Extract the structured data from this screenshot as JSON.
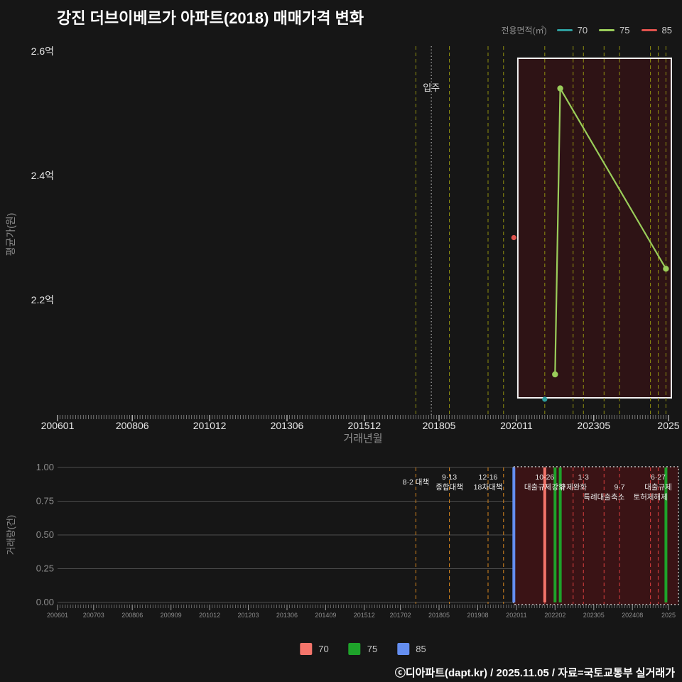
{
  "title": "강진 더브이베르가 아파트(2018) 매매가격 변화",
  "footer": "ⓒ디아파트(dapt.kr) / 2025.11.05 / 자료=국토교통부 실거래가",
  "area_legend": {
    "title": "전용면적(㎡)",
    "items": [
      {
        "label": "70",
        "color": "#2e9e9e"
      },
      {
        "label": "75",
        "color": "#9acd5a"
      },
      {
        "label": "85",
        "color": "#e0524d"
      }
    ]
  },
  "volume_legend": {
    "items": [
      {
        "label": "70",
        "color": "#f4756b"
      },
      {
        "label": "75",
        "color": "#1ea32a"
      },
      {
        "label": "85",
        "color": "#648ef0"
      }
    ]
  },
  "colors": {
    "background": "#161616",
    "title_text": "#ffffff",
    "policy_top": "#8f8f10",
    "policy_pre": "#c87d1e",
    "policy_post": "#cc3b3b",
    "move_in_line": "#aaaaaa",
    "zoom_box_fill": "#2e1315",
    "zoom_box_border": "#f2f2f2",
    "selection_fill": "#3a1315",
    "selection_border": "#c8c8c8",
    "gridline": "#4d4d4d",
    "axis_text": "#e8e8e8",
    "muted_text": "#8d8d8d",
    "annotation_text": "#e9e9e9"
  },
  "chart_data": [
    {
      "type": "line",
      "title": "매매가격 변화 (평균가)",
      "xlabel": "거래년월",
      "ylabel": "평균가(원)",
      "xlim": [
        "200601",
        "202510"
      ],
      "ylim_eok": [
        2.0,
        2.62
      ],
      "x_ticks": [
        {
          "ym": "200601",
          "label": "200601"
        },
        {
          "ym": "200806",
          "label": "200806"
        },
        {
          "ym": "201012",
          "label": "201012"
        },
        {
          "ym": "201306",
          "label": "201306"
        },
        {
          "ym": "201512",
          "label": "201512"
        },
        {
          "ym": "201805",
          "label": "201805"
        },
        {
          "ym": "202011",
          "label": "202011"
        },
        {
          "ym": "202305",
          "label": "202305"
        },
        {
          "ym": "202510",
          "label": "2025"
        }
      ],
      "y_ticks": [
        {
          "value": 2.2,
          "label": "2.2억"
        },
        {
          "value": 2.4,
          "label": "2.4억"
        },
        {
          "value": 2.6,
          "label": "2.6억"
        }
      ],
      "series": [
        {
          "name": "70",
          "color": "#2e9e9e",
          "unit": "억",
          "points": [
            [
              "202110",
              2.04
            ]
          ]
        },
        {
          "name": "75",
          "color": "#9acd5a",
          "unit": "억",
          "points": [
            [
              "202202",
              2.08
            ],
            [
              "202204",
              2.54
            ],
            [
              "202509",
              2.25
            ]
          ]
        },
        {
          "name": "85",
          "color": "#e0524d",
          "unit": "억",
          "points": [
            [
              "202010",
              2.3
            ]
          ]
        }
      ],
      "move_in": {
        "label": "입주",
        "ym": "201802"
      },
      "policy_lines": [
        "201708",
        "201809",
        "201912",
        "202006",
        "202110",
        "202209",
        "202301",
        "202309",
        "202403",
        "202503",
        "202506",
        "202509"
      ],
      "zoom_box": {
        "from": "202011",
        "to": "202510"
      }
    },
    {
      "type": "bar",
      "ylabel": "거래량(건)",
      "ylim": [
        0,
        1
      ],
      "x_ticks": [
        {
          "ym": "200601",
          "label": "200601"
        },
        {
          "ym": "200703",
          "label": "200703"
        },
        {
          "ym": "200806",
          "label": "200806"
        },
        {
          "ym": "200909",
          "label": "200909"
        },
        {
          "ym": "201012",
          "label": "201012"
        },
        {
          "ym": "201203",
          "label": "201203"
        },
        {
          "ym": "201306",
          "label": "201306"
        },
        {
          "ym": "201409",
          "label": "201409"
        },
        {
          "ym": "201512",
          "label": "201512"
        },
        {
          "ym": "201702",
          "label": "201702"
        },
        {
          "ym": "201805",
          "label": "201805"
        },
        {
          "ym": "201908",
          "label": "201908"
        },
        {
          "ym": "202011",
          "label": "202011"
        },
        {
          "ym": "202202",
          "label": "202202"
        },
        {
          "ym": "202305",
          "label": "202305"
        },
        {
          "ym": "202408",
          "label": "202408"
        },
        {
          "ym": "202510",
          "label": "2025"
        }
      ],
      "y_ticks": [
        {
          "value": 0,
          "label": "0.00"
        },
        {
          "value": 0.25,
          "label": "0.25"
        },
        {
          "value": 0.5,
          "label": "0.50"
        },
        {
          "value": 0.75,
          "label": "0.75"
        },
        {
          "value": 1,
          "label": "1.00"
        }
      ],
      "bars": [
        {
          "ym": "202010",
          "name": "85",
          "value": 1,
          "color": "#648ef0"
        },
        {
          "ym": "202110",
          "name": "70",
          "value": 1,
          "color": "#f4756b"
        },
        {
          "ym": "202202",
          "name": "75",
          "value": 1,
          "color": "#1ea32a"
        },
        {
          "ym": "202204",
          "name": "75",
          "value": 1,
          "color": "#1ea32a"
        },
        {
          "ym": "202509",
          "name": "75",
          "value": 1,
          "color": "#1ea32a"
        }
      ],
      "annotations": [
        {
          "label": "8·2 대책",
          "ym": "201708",
          "row": 1.5
        },
        {
          "label": "9·13",
          "ym": "201809",
          "row": 1
        },
        {
          "label": "종합대책",
          "ym": "201809",
          "row": 2
        },
        {
          "label": "12·16",
          "ym": "201912",
          "row": 1
        },
        {
          "label": "18차대책",
          "ym": "201912",
          "row": 2
        },
        {
          "label": "10·26",
          "ym": "202110",
          "row": 1
        },
        {
          "label": "대출규제강화",
          "ym": "202110",
          "row": 2
        },
        {
          "label": "규제완화",
          "ym": "202209",
          "row": 2
        },
        {
          "label": "1·3",
          "ym": "202301",
          "row": 1
        },
        {
          "label": "특례대출축소",
          "ym": "202309",
          "row": 3
        },
        {
          "label": "9·7",
          "ym": "202403",
          "row": 2
        },
        {
          "label": "토허제해제",
          "ym": "202503",
          "row": 3
        },
        {
          "label": "6·27",
          "ym": "202506",
          "row": 1
        },
        {
          "label": "대출규제",
          "ym": "202506",
          "row": 2
        }
      ],
      "policy_lines": [
        "201708",
        "201809",
        "201912",
        "202006",
        "202110",
        "202209",
        "202301",
        "202309",
        "202403",
        "202503",
        "202506",
        "202509"
      ],
      "selection": {
        "from": "202011",
        "to": "202510"
      }
    }
  ]
}
